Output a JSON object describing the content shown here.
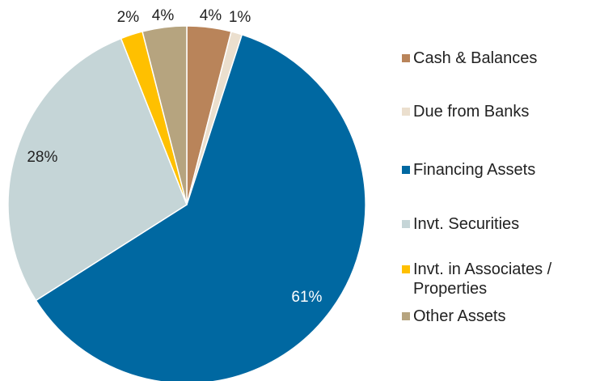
{
  "chart_data": {
    "type": "pie",
    "categories": [
      "Cash & Balances",
      "Due from Banks",
      "Financing Assets",
      "Invt. Securities",
      "Invt. in Associates / Properties",
      "Other Assets"
    ],
    "values": [
      4,
      1,
      61,
      28,
      2,
      4
    ],
    "value_labels": [
      "4%",
      "1%",
      "61%",
      "28%",
      "2%",
      "4%"
    ],
    "colors": [
      "#b9845a",
      "#ebdfce",
      "#0068a1",
      "#c5d5d7",
      "#ffc000",
      "#b6a47f"
    ]
  }
}
